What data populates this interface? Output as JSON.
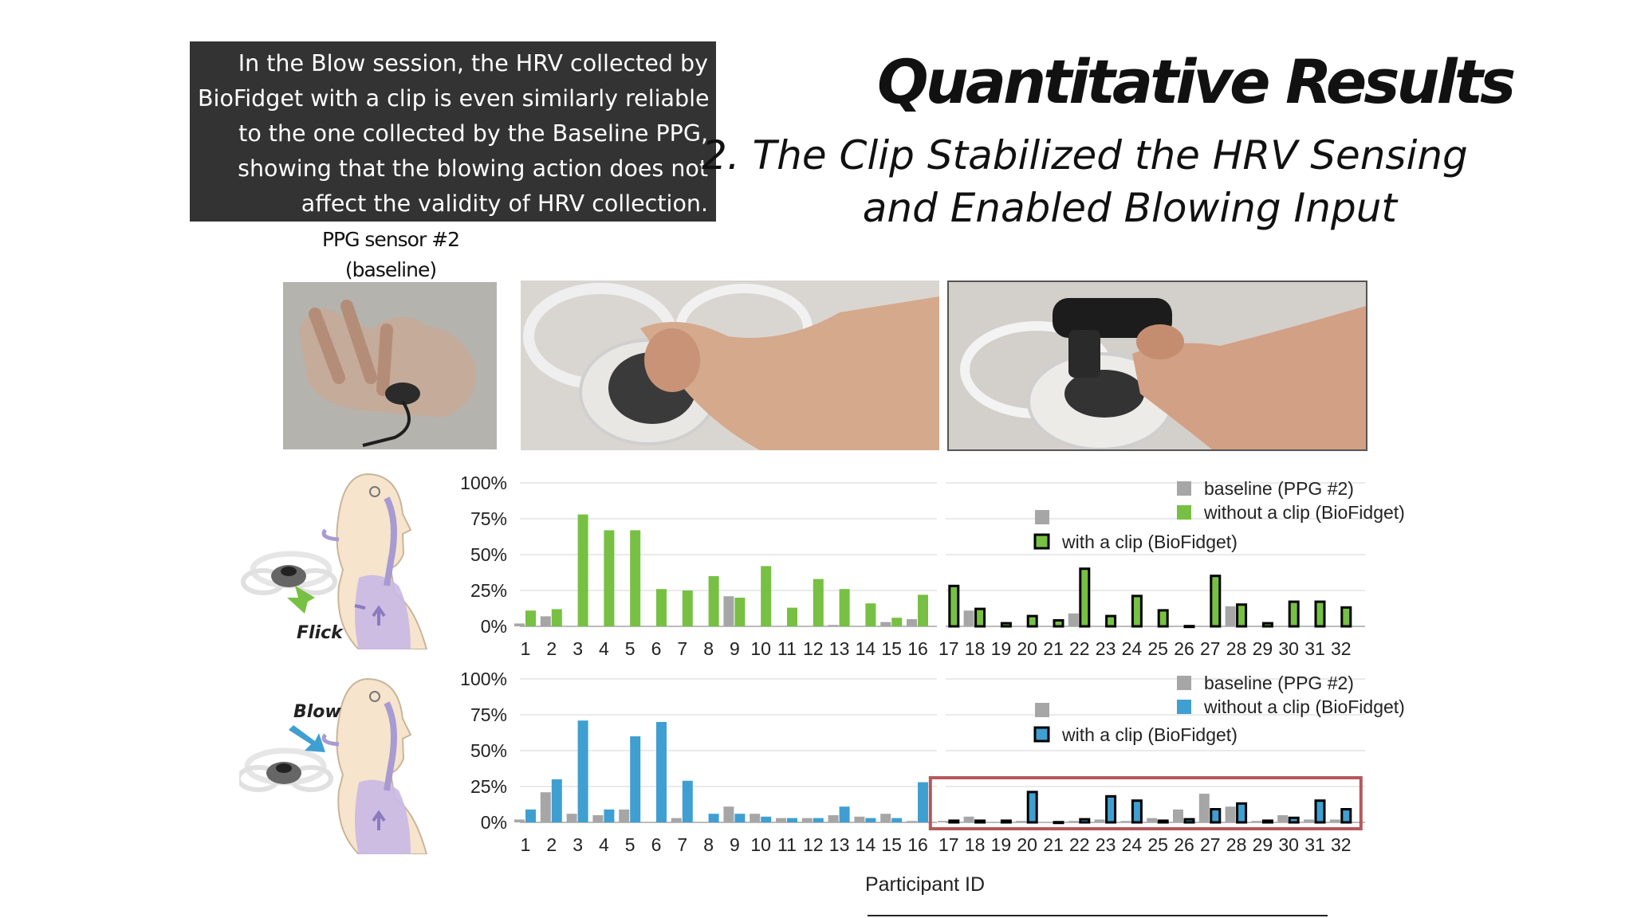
{
  "callout": {
    "lines": [
      "In the Blow session, the HRV collected by",
      "BioFidget with a clip is even similarly reliable",
      "to the one collected by the Baseline PPG,",
      "showing that the blowing action does not",
      "affect the validity of HRV collection."
    ]
  },
  "header": {
    "title": "Quantitative Results",
    "subtitle_line1": "2. The Clip Stabilized the HRV Sensing",
    "subtitle_line2": "and Enabled Blowing Input"
  },
  "photos": {
    "ppg_caption_line1": "PPG sensor #2",
    "ppg_caption_line2": "(baseline)"
  },
  "illustrations": {
    "flick_label": "Flick",
    "blow_label": "Blow"
  },
  "colors": {
    "baseline": "#a6a6a6",
    "flick": "#77c043",
    "blow": "#3f9fd1",
    "highlight": "#b5595a",
    "grid": "#e3e3e3",
    "callout_bg": "#333333"
  },
  "chart_data": [
    {
      "type": "bar",
      "title": "Flick",
      "xlabel": "Participant ID",
      "ylabel": "",
      "ylim": [
        0,
        100
      ],
      "yticks": [
        "0%",
        "25%",
        "50%",
        "75%",
        "100%"
      ],
      "categories": [
        "1",
        "2",
        "3",
        "4",
        "5",
        "6",
        "7",
        "8",
        "9",
        "10",
        "11",
        "12",
        "13",
        "14",
        "15",
        "16",
        "17",
        "18",
        "19",
        "20",
        "21",
        "22",
        "23",
        "24",
        "25",
        "26",
        "27",
        "28",
        "29",
        "30",
        "31",
        "32"
      ],
      "legend": [
        "baseline (PPG #2)",
        "without a clip (BioFidget)",
        "with a clip (BioFidget)"
      ],
      "series": [
        {
          "name": "baseline (PPG #2)",
          "values": [
            2,
            7,
            0,
            0,
            0,
            0,
            0,
            0,
            21,
            0,
            0,
            0,
            1,
            0,
            3,
            5,
            0,
            11,
            0,
            0,
            0,
            9,
            0,
            0,
            0,
            0,
            0,
            14,
            0,
            0,
            0,
            0
          ]
        },
        {
          "name": "without a clip (BioFidget)",
          "values": [
            11,
            12,
            78,
            67,
            67,
            26,
            25,
            35,
            20,
            42,
            13,
            33,
            26,
            16,
            6,
            22,
            null,
            null,
            null,
            null,
            null,
            null,
            null,
            null,
            null,
            null,
            null,
            null,
            null,
            null,
            null,
            null
          ]
        },
        {
          "name": "with a clip (BioFidget)",
          "values": [
            null,
            null,
            null,
            null,
            null,
            null,
            null,
            null,
            null,
            null,
            null,
            null,
            null,
            null,
            null,
            null,
            29,
            13,
            3,
            8,
            5,
            41,
            8,
            22,
            12,
            1,
            36,
            16,
            3,
            18,
            18,
            14
          ]
        }
      ]
    },
    {
      "type": "bar",
      "title": "Blow",
      "xlabel": "Participant ID",
      "ylabel": "",
      "ylim": [
        0,
        100
      ],
      "yticks": [
        "0%",
        "25%",
        "50%",
        "75%",
        "100%"
      ],
      "categories": [
        "1",
        "2",
        "3",
        "4",
        "5",
        "6",
        "7",
        "8",
        "9",
        "10",
        "11",
        "12",
        "13",
        "14",
        "15",
        "16",
        "17",
        "18",
        "19",
        "20",
        "21",
        "22",
        "23",
        "24",
        "25",
        "26",
        "27",
        "28",
        "29",
        "30",
        "31",
        "32"
      ],
      "legend": [
        "baseline (PPG #2)",
        "without a clip (BioFidget)",
        "with a clip (BioFidget)"
      ],
      "highlight_range": [
        "17",
        "32"
      ],
      "series": [
        {
          "name": "baseline (PPG #2)",
          "values": [
            2,
            21,
            6,
            5,
            9,
            0,
            3,
            0,
            11,
            6,
            3,
            3,
            5,
            4,
            6,
            1,
            1,
            4,
            0,
            1,
            0,
            1,
            2,
            1,
            3,
            9,
            20,
            11,
            1,
            5,
            2,
            2
          ]
        },
        {
          "name": "without a clip (BioFidget)",
          "values": [
            9,
            30,
            71,
            9,
            60,
            70,
            29,
            6,
            6,
            4,
            3,
            3,
            11,
            3,
            3,
            28,
            null,
            null,
            null,
            null,
            null,
            null,
            null,
            null,
            null,
            null,
            null,
            null,
            null,
            null,
            null,
            null
          ]
        },
        {
          "name": "with a clip (BioFidget)",
          "values": [
            null,
            null,
            null,
            null,
            null,
            null,
            null,
            null,
            null,
            null,
            null,
            null,
            null,
            null,
            null,
            null,
            2,
            2,
            2,
            22,
            1,
            3,
            19,
            16,
            2,
            3,
            10,
            14,
            2,
            4,
            16,
            10
          ]
        }
      ]
    }
  ],
  "axis_title": "Participant ID"
}
